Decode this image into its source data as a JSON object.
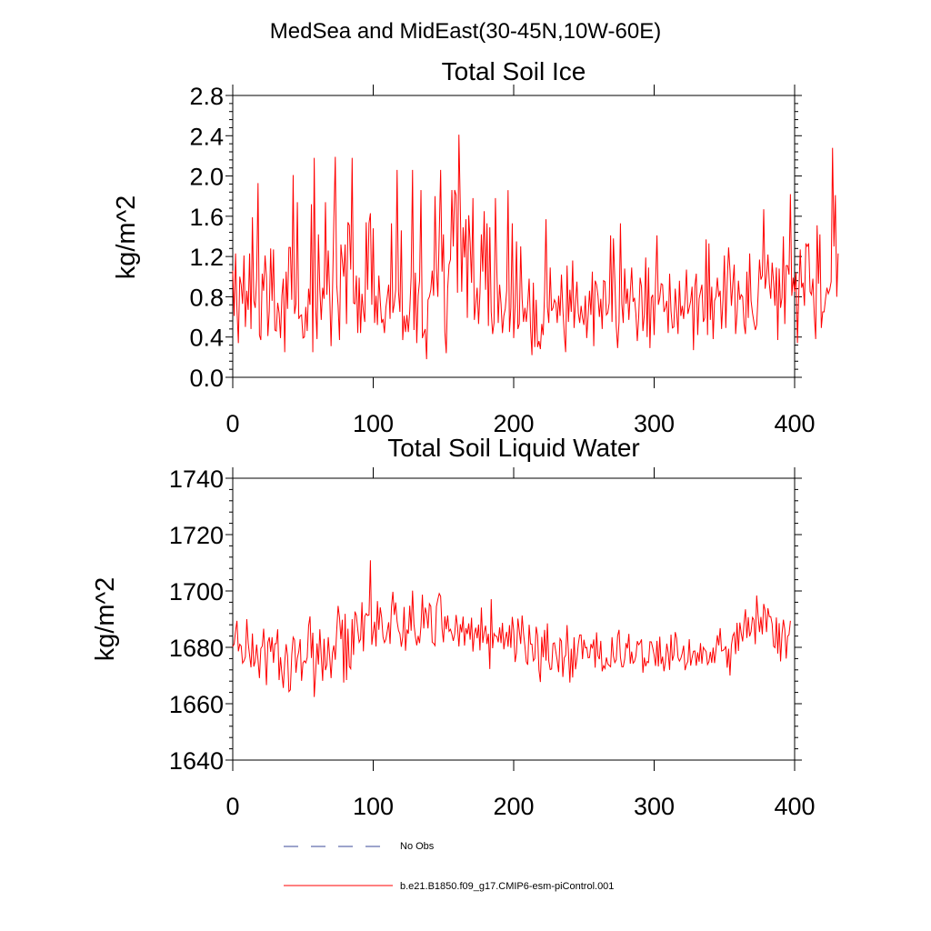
{
  "figure_title": "MedSea and MidEast(30-45N,10W-60E)",
  "legend": [
    {
      "label": "No Obs",
      "style": "dashed",
      "color": "#3b4a9a"
    },
    {
      "label": "b.e21.B1850.f09_g17.CMIP6-esm-piControl.001",
      "style": "solid",
      "color": "#ff0000"
    }
  ],
  "chart_data": [
    {
      "type": "line",
      "title": "Total Soil Ice",
      "xlabel": "",
      "ylabel": "kg/m^2",
      "xlim": [
        0,
        400
      ],
      "ylim": [
        0,
        2.8
      ],
      "xticks": [
        "0",
        "100",
        "200",
        "300",
        "400"
      ],
      "yticks": [
        "0.0",
        "0.4",
        "0.8",
        "1.2",
        "1.6",
        "2.0",
        "2.4",
        "2.8"
      ],
      "series": [
        {
          "name": "b.e21.B1850.f09_g17.CMIP6-esm-piControl.001",
          "color": "#ff0000",
          "x_start": 0,
          "x_step": 1,
          "values": [
            1.06,
            0.61,
            1.23,
            0.68,
            0.34,
            1.0,
            0.92,
            0.73,
            1.21,
            0.5,
            0.86,
            0.67,
            1.23,
            0.48,
            1.59,
            0.76,
            0.69,
            0.98,
            1.93,
            0.42,
            0.37,
            1.03,
            0.86,
            1.21,
            1.0,
            0.41,
            0.66,
            1.28,
            0.76,
            1.27,
            0.47,
            0.46,
            0.74,
            0.64,
            0.39,
            0.81,
            0.98,
            0.25,
            1.05,
            0.68,
            1.29,
            1.29,
            0.77,
            2.01,
            0.63,
            0.73,
            1.74,
            0.58,
            0.61,
            0.62,
            0.39,
            0.4,
            0.7,
            0.46,
            0.88,
            0.72,
            1.72,
            0.25,
            2.18,
            0.7,
            0.38,
            1.42,
            0.87,
            0.57,
            0.89,
            0.78,
            1.74,
            0.82,
            1.26,
            0.83,
            0.31,
            0.84,
            1.58,
            2.19,
            0.92,
            0.71,
            0.37,
            1.32,
            1.16,
            1.0,
            1.32,
            0.53,
            1.54,
            1.51,
            1.07,
            2.18,
            0.74,
            0.73,
            1.01,
            0.44,
            0.99,
            0.44,
            0.83,
            0.66,
            0.55,
            1.54,
            0.87,
            1.53,
            1.63,
            0.72,
            1.48,
            0.54,
            0.81,
            0.52,
            1.01,
            0.76,
            0.54,
            0.58,
            0.44,
            0.69,
            0.8,
            0.92,
            0.58,
            1.53,
            0.64,
            0.73,
            0.87,
            2.06,
            0.85,
            0.65,
            1.46,
            0.37,
            0.61,
            0.45,
            0.62,
            0.45,
            0.66,
            1.0,
            2.06,
            0.47,
            1.04,
            0.34,
            0.81,
            0.96,
            1.86,
            0.39,
            0.44,
            0.48,
            0.18,
            0.77,
            0.8,
            0.87,
            1.06,
            0.81,
            1.8,
            1.08,
            0.8,
            1.42,
            2.06,
            1.05,
            1.42,
            0.45,
            0.24,
            0.88,
            1.12,
            1.17,
            1.86,
            1.3,
            1.86,
            1.81,
            0.84,
            2.41,
            1.7,
            0.85,
            1.49,
            1.19,
            1.57,
            0.59,
            1.61,
            1.34,
            0.94,
            1.78,
            0.57,
            0.73,
            0.89,
            0.53,
            0.84,
            1.42,
            1.05,
            1.65,
            0.87,
            1.53,
            0.51,
            1.49,
            0.65,
            0.43,
            0.54,
            1.78,
            1.06,
            0.54,
            0.92,
            0.73,
            0.44,
            0.61,
            0.68,
            0.86,
            1.86,
            0.45,
            0.69,
            1.53,
            0.39,
            0.7,
            1.35,
            0.48,
            0.53,
            1.3,
            0.78,
            0.55,
            0.69,
            0.55,
            0.73,
            0.98,
            0.49,
            0.22,
            0.94,
            0.3,
            0.77,
            0.3,
            0.36,
            0.28,
            0.53,
            0.42,
            0.84,
            1.57,
            0.7,
            0.54,
            1.09,
            0.66,
            0.69,
            0.77,
            0.74,
            0.54,
            0.81,
            0.61,
            1.02,
            0.68,
            0.43,
            0.25,
            1.11,
            0.55,
            0.87,
            0.65,
            1.16,
            0.49,
            0.73,
            0.95,
            0.64,
            0.54,
            0.71,
            0.59,
            0.52,
            0.81,
            0.39,
            0.61,
            0.86,
            0.62,
            1.05,
            0.31,
            0.96,
            0.92,
            0.81,
            0.6,
            0.78,
            0.48,
            0.96,
            0.95,
            0.62,
            0.64,
            0.74,
            1.41,
            0.55,
            1.38,
            0.97,
            0.51,
            0.29,
            0.55,
            1.53,
            0.73,
            0.54,
            1.08,
            0.73,
            0.88,
            0.57,
            0.84,
            1.09,
            0.75,
            0.79,
            0.63,
            0.36,
            0.6,
            0.99,
            0.9,
            0.46,
            0.62,
            1.19,
            0.4,
            1.09,
            0.29,
            0.79,
            0.82,
            0.42,
            0.94,
            1.41,
            0.72,
            0.79,
            0.93,
            0.92,
            0.65,
            0.69,
            0.76,
            0.44,
            1.03,
            0.66,
            0.49,
            0.5,
            0.88,
            0.66,
            0.43,
            0.96,
            0.61,
            0.71,
            0.58,
            0.78,
            1.07,
            0.63,
            0.69,
            0.76,
            0.9,
            0.27,
            0.91,
            1.03,
            0.42,
            0.78,
            0.85,
            0.92,
            0.55,
            0.59,
            1.37,
            0.42,
            1.33,
            0.57,
            0.9,
            0.38,
            0.76,
            0.8,
            0.99,
            0.8,
            0.86,
            0.48,
            0.77,
            1.21,
            0.49,
            0.95,
            1.29,
            1.06,
            0.71,
            0.93,
            1.12,
            0.43,
            0.63,
            0.96,
            0.77,
            0.82,
            0.8,
            0.53,
            0.43,
            1.05,
            0.59,
            1.23,
            0.76,
            0.64,
            0.55,
            0.47,
            0.52,
            0.82,
            1.17,
            0.97,
            1.01,
            1.67,
            0.88,
            1.0,
            1.22,
            0.93,
            0.78,
            1.14,
            0.95,
            0.71,
            1.09,
            0.37,
            1.08,
            0.69,
            0.79,
            1.4,
            0.53,
            1.11,
            1.11,
            1.02,
            1.82,
            0.81,
            0.99,
            0.85,
            1.04,
            0.34,
            0.84,
            1.27,
            0.89,
            0.94,
            0.71,
            1.33,
            1.3,
            1.33,
            0.85,
            0.82,
            0.98,
            0.62,
            0.38,
            1.51,
            0.93,
            1.42,
            0.49,
            0.65,
            0.65,
            0.78,
            0.89,
            0.83,
            0.87,
            0.95,
            2.28,
            1.3,
            1.81,
            0.8,
            1.23
          ]
        }
      ]
    },
    {
      "type": "line",
      "title": "Total Soil Liquid Water",
      "xlabel": "",
      "ylabel": "kg/m^2",
      "xlim": [
        0,
        400
      ],
      "ylim": [
        1640,
        1740
      ],
      "xticks": [
        "0",
        "100",
        "200",
        "300",
        "400"
      ],
      "yticks": [
        "1640",
        "1660",
        "1680",
        "1700",
        "1720",
        "1740"
      ],
      "series": [
        {
          "name": "b.e21.B1850.f09_g17.CMIP6-esm-piControl.001",
          "color": "#ff0000",
          "x_start": 0,
          "x_step": 1,
          "values": [
            1680.2,
            1681.2,
            1685.8,
            1689.4,
            1678.6,
            1681.1,
            1680.5,
            1674.4,
            1675.2,
            1676.6,
            1690.0,
            1681.5,
            1677.1,
            1672.9,
            1684.9,
            1673.2,
            1675.1,
            1681.0,
            1675.4,
            1669.1,
            1679.6,
            1680.4,
            1686.6,
            1677.5,
            1666.6,
            1681.8,
            1683.6,
            1678.4,
            1683.6,
            1674.5,
            1681.3,
            1681.3,
            1686.4,
            1668.4,
            1676.5,
            1670.6,
            1665.6,
            1674.8,
            1681.1,
            1677.1,
            1664.3,
            1664.9,
            1677.3,
            1683.6,
            1682.6,
            1671.0,
            1676.2,
            1678.5,
            1682.9,
            1668.1,
            1674.5,
            1675.2,
            1674.5,
            1676.4,
            1687.6,
            1691.0,
            1676.2,
            1685.2,
            1662.4,
            1670.9,
            1681.4,
            1673.9,
            1686.4,
            1676.9,
            1668.1,
            1683.0,
            1671.9,
            1673.8,
            1683.6,
            1676.7,
            1669.1,
            1678.1,
            1680.7,
            1675.6,
            1685.9,
            1694.7,
            1690.6,
            1682.9,
            1689.8,
            1667.5,
            1691.9,
            1668.4,
            1686.6,
            1673.2,
            1672.4,
            1690.0,
            1677.3,
            1692.7,
            1691.3,
            1686.3,
            1681.8,
            1682.9,
            1696.0,
            1678.6,
            1691.0,
            1692.0,
            1691.3,
            1691.5,
            1710.9,
            1680.9,
            1685.3,
            1689.1,
            1680.3,
            1696.4,
            1686.2,
            1694.2,
            1690.6,
            1683.6,
            1681.7,
            1682.8,
            1685.8,
            1688.9,
            1681.2,
            1694.4,
            1699.7,
            1691.5,
            1695.9,
            1689.2,
            1686.0,
            1684.8,
            1680.2,
            1683.6,
            1694.3,
            1678.8,
            1686.3,
            1684.8,
            1694.8,
            1685.9,
            1700.1,
            1688.2,
            1683.9,
            1680.7,
            1684.1,
            1681.5,
            1687.6,
            1698.7,
            1686.7,
            1694.1,
            1691.9,
            1686.7,
            1695.5,
            1694.6,
            1681.8,
            1681.4,
            1680.6,
            1694.5,
            1697.0,
            1699.1,
            1698.1,
            1686.7,
            1681.8,
            1691.0,
            1686.4,
            1691.3,
            1685.7,
            1686.4,
            1684.7,
            1682.3,
            1684.7,
            1691.5,
            1687.3,
            1680.3,
            1688.2,
            1685.3,
            1690.9,
            1680.6,
            1686.8,
            1684.7,
            1688.5,
            1682.7,
            1690.5,
            1678.5,
            1684.7,
            1687.0,
            1683.2,
            1688.1,
            1678.9,
            1694.1,
            1681.6,
            1685.4,
            1687.7,
            1681.2,
            1684.8,
            1672.3,
            1697.1,
            1679.7,
            1684.9,
            1684.0,
            1683.9,
            1681.8,
            1687.1,
            1681.5,
            1688.7,
            1679.3,
            1683.1,
            1685.5,
            1680.2,
            1687.9,
            1679.8,
            1690.8,
            1686.0,
            1674.8,
            1678.1,
            1690.2,
            1685.9,
            1681.2,
            1691.3,
            1685.0,
            1680.4,
            1674.9,
            1673.8,
            1688.0,
            1681.2,
            1681.1,
            1675.2,
            1676.0,
            1687.3,
            1684.3,
            1672.0,
            1667.7,
            1683.7,
            1676.5,
            1686.2,
            1675.3,
            1688.5,
            1675.1,
            1672.1,
            1672.3,
            1681.3,
            1681.6,
            1678.4,
            1675.3,
            1671.2,
            1683.1,
            1682.2,
            1669.5,
            1676.3,
            1677.2,
            1687.9,
            1678.0,
            1667.5,
            1679.5,
            1669.3,
            1683.6,
            1672.2,
            1676.0,
            1681.1,
            1684.4,
            1684.4,
            1675.8,
            1682.7,
            1679.8,
            1680.0,
            1676.3,
            1676.4,
            1681.2,
            1679.6,
            1682.8,
            1672.8,
            1685.3,
            1677.0,
            1675.8,
            1682.3,
            1671.5,
            1673.5,
            1672.5,
            1676.4,
            1674.1,
            1673.6,
            1673.1,
            1683.6,
            1676.9,
            1674.6,
            1675.6,
            1684.1,
            1686.2,
            1676.5,
            1673.1,
            1673.1,
            1675.8,
            1681.5,
            1679.6,
            1684.8,
            1674.2,
            1678.5,
            1674.4,
            1675.0,
            1676.9,
            1682.2,
            1680.9,
            1681.6,
            1682.8,
            1671.0,
            1676.4,
            1673.3,
            1675.0,
            1674.6,
            1682.0,
            1681.9,
            1679.8,
            1677.2,
            1673.4,
            1682.3,
            1673.2,
            1683.8,
            1674.1,
            1676.7,
            1671.5,
            1674.8,
            1681.3,
            1678.0,
            1672.0,
            1684.5,
            1675.3,
            1677.2,
            1685.4,
            1683.2,
            1676.4,
            1675.1,
            1676.1,
            1677.9,
            1680.6,
            1671.9,
            1673.9,
            1675.0,
            1682.9,
            1673.5,
            1676.3,
            1678.6,
            1678.7,
            1673.5,
            1678.2,
            1674.9,
            1681.5,
            1674.2,
            1680.0,
            1679.2,
            1678.5,
            1673.9,
            1674.9,
            1678.4,
            1674.5,
            1679.9,
            1674.4,
            1679.1,
            1684.3,
            1680.7,
            1686.8,
            1678.7,
            1678.9,
            1679.3,
            1680.4,
            1672.8,
            1679.5,
            1670.0,
            1680.7,
            1684.1,
            1685.1,
            1677.6,
            1688.7,
            1678.7,
            1688.8,
            1685.0,
            1682.1,
            1688.6,
            1693.5,
            1683.3,
            1690.7,
            1683.9,
            1685.6,
            1690.6,
            1689.8,
            1681.1,
            1698.4,
            1691.3,
            1685.4,
            1690.8,
            1684.6,
            1695.4,
            1693.0,
            1685.4,
            1693.9,
            1690.9,
            1690.9,
            1688.3,
            1680.4,
            1679.9,
            1690.6,
            1677.8,
            1688.6,
            1675.0,
            1684.6,
            1689.8,
            1686.3,
            1676.0,
            1683.9,
            1684.5,
            1689.4
          ]
        }
      ]
    }
  ]
}
